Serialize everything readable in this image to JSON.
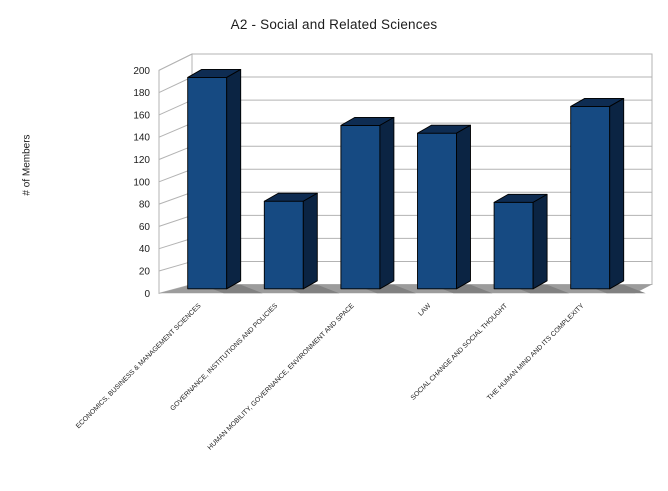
{
  "chart_data": {
    "type": "bar",
    "style": "3d-column",
    "title": "A2 - Social and Related Sciences",
    "xlabel": "",
    "ylabel": "# of Members",
    "categories": [
      "ECONOMICS, BUSINESS & MANAGEMENT SCIENCES",
      "GOVERNANCE, INSTITUTIONS AND POLICIES",
      "HUMAN MOBILITY, GOVERNANCE, ENVIRONMENT AND SPACE",
      "LAW",
      "SOCIAL CHANGE AND SOCIAL THOUGHT",
      "THE HUMAN MIND AND ITS COMPLEXITY"
    ],
    "values": [
      190,
      79,
      147,
      140,
      78,
      164
    ],
    "ylim": [
      0,
      200
    ],
    "ytick_step": 20,
    "grid": true,
    "legend": "none",
    "colors": {
      "bar_front": "#164a82",
      "bar_top": "#0e2c52",
      "bar_side": "#0b2443",
      "bar_outline": "#000000",
      "floor": "#9c9c9c",
      "shadow": "#818181",
      "wall_fill": "#ffffff",
      "gridline": "#b3b3b3",
      "text": "#1c1c1c"
    }
  }
}
